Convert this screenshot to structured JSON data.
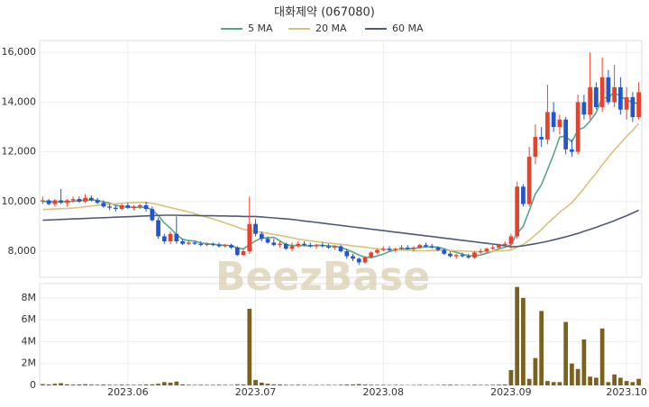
{
  "chart_data": [
    {
      "type": "candlestick",
      "title": "대화제약 (067080)",
      "watermark": "BeezBase",
      "up_color": "#e8412c",
      "down_color": "#2456c9",
      "ylim": [
        6950,
        16480
      ],
      "yticks": [
        {
          "value": 8000,
          "label": "8,000"
        },
        {
          "value": 10000,
          "label": "10,000"
        },
        {
          "value": 12000,
          "label": "12,000"
        },
        {
          "value": 14000,
          "label": "14,000"
        },
        {
          "value": 16000,
          "label": "16,000"
        }
      ],
      "grid": true,
      "open": [
        10000,
        10050,
        9900,
        10050,
        9950,
        10050,
        10100,
        10000,
        10150,
        10050,
        9950,
        9800,
        9750,
        9700,
        9850,
        9750,
        9800,
        9850,
        9700,
        9250,
        8600,
        8400,
        8700,
        8400,
        8300,
        8350,
        8300,
        8250,
        8300,
        8250,
        8200,
        8250,
        8150,
        7850,
        8000,
        9100,
        8700,
        8500,
        8350,
        8250,
        8300,
        8100,
        8200,
        8300,
        8250,
        8200,
        8250,
        8200,
        8150,
        8200,
        8000,
        7800,
        7700,
        7550,
        7750,
        7950,
        8050,
        8100,
        8050,
        8100,
        8150,
        8100,
        8150,
        8250,
        8200,
        8150,
        8050,
        7900,
        7800,
        7850,
        7800,
        7750,
        7950,
        8000,
        8100,
        8150,
        8250,
        8300,
        8600,
        10600,
        9900,
        11800,
        12600,
        12500,
        13600,
        13000,
        13300,
        12100,
        12000,
        14000,
        13500,
        14600,
        13800,
        15000,
        14000,
        14600,
        13700,
        14200,
        13400
      ],
      "high": [
        10200,
        10100,
        10100,
        10500,
        10100,
        10200,
        10200,
        10300,
        10250,
        10150,
        10050,
        9900,
        9850,
        9900,
        9950,
        9850,
        9900,
        10000,
        9800,
        9350,
        8700,
        8800,
        9400,
        8500,
        8450,
        8400,
        8400,
        8350,
        8350,
        8350,
        8300,
        8300,
        8200,
        8100,
        10200,
        9300,
        8800,
        8600,
        8500,
        8400,
        8350,
        8350,
        8400,
        8400,
        8350,
        8300,
        8350,
        8300,
        8250,
        8250,
        8100,
        7900,
        7750,
        7800,
        8000,
        8100,
        8200,
        8200,
        8150,
        8250,
        8250,
        8200,
        8300,
        8350,
        8300,
        8200,
        8100,
        8000,
        7900,
        7950,
        7900,
        8000,
        8100,
        8150,
        8250,
        8300,
        8400,
        8700,
        10800,
        10700,
        12200,
        13100,
        13000,
        14700,
        14000,
        13500,
        13400,
        12500,
        14300,
        14300,
        16000,
        14800,
        15800,
        15300,
        15500,
        15000,
        14600,
        14400,
        14800
      ],
      "low": [
        9900,
        9850,
        9800,
        9900,
        9800,
        9950,
        9950,
        9950,
        10000,
        9900,
        9750,
        9650,
        9600,
        9650,
        9700,
        9650,
        9700,
        9600,
        9200,
        8500,
        8300,
        8300,
        8300,
        8250,
        8250,
        8250,
        8200,
        8200,
        8200,
        8150,
        8150,
        8100,
        7800,
        7800,
        7900,
        8600,
        8400,
        8300,
        8200,
        8150,
        8050,
        8000,
        8150,
        8200,
        8150,
        8100,
        8150,
        8100,
        8050,
        7950,
        7700,
        7600,
        7450,
        7500,
        7700,
        7900,
        8000,
        8000,
        7950,
        8050,
        8050,
        8000,
        8100,
        8150,
        8100,
        8000,
        7850,
        7750,
        7700,
        7750,
        7700,
        7700,
        7900,
        7950,
        8050,
        8100,
        8200,
        8100,
        8500,
        9800,
        9800,
        11500,
        12200,
        12300,
        12800,
        12700,
        11900,
        11800,
        11900,
        13300,
        13300,
        13700,
        13600,
        13900,
        13800,
        13500,
        13300,
        13200,
        13300
      ],
      "close": [
        10050,
        9900,
        10050,
        9950,
        10050,
        10100,
        10000,
        10150,
        10050,
        9950,
        9800,
        9750,
        9700,
        9850,
        9750,
        9800,
        9850,
        9700,
        9250,
        8600,
        8400,
        8700,
        8400,
        8300,
        8350,
        8300,
        8250,
        8300,
        8250,
        8200,
        8250,
        8150,
        7850,
        8000,
        9100,
        8700,
        8500,
        8350,
        8250,
        8300,
        8100,
        8200,
        8300,
        8250,
        8200,
        8250,
        8200,
        8150,
        8200,
        8000,
        7800,
        7700,
        7550,
        7750,
        7950,
        8050,
        8100,
        8050,
        8100,
        8150,
        8100,
        8150,
        8250,
        8200,
        8150,
        8050,
        7900,
        7800,
        7850,
        7800,
        7750,
        7950,
        8000,
        8100,
        8150,
        8250,
        8300,
        8600,
        10600,
        9900,
        11800,
        12600,
        12500,
        13600,
        13000,
        13300,
        12100,
        12000,
        14000,
        13500,
        14600,
        13800,
        15000,
        14000,
        14600,
        13700,
        14200,
        13400,
        14400
      ],
      "series": [
        {
          "name": "5 MA",
          "color": "#5aa58a",
          "values": [
            10000,
            10000,
            9980,
            10000,
            9990,
            10010,
            10030,
            10060,
            10070,
            10050,
            9990,
            9940,
            9850,
            9810,
            9770,
            9770,
            9770,
            9770,
            9670,
            9440,
            9140,
            8930,
            8670,
            8480,
            8430,
            8410,
            8330,
            8300,
            8280,
            8260,
            8240,
            8230,
            8140,
            8090,
            8270,
            8420,
            8530,
            8540,
            8560,
            8420,
            8260,
            8230,
            8230,
            8230,
            8210,
            8240,
            8240,
            8210,
            8200,
            8160,
            8070,
            7970,
            7850,
            7760,
            7750,
            7810,
            7880,
            7990,
            8050,
            8090,
            8100,
            8110,
            8150,
            8180,
            8180,
            8160,
            8100,
            8020,
            7960,
            7880,
            7820,
            7820,
            7850,
            7920,
            8000,
            8090,
            8160,
            8260,
            8720,
            9000,
            9640,
            10300,
            10680,
            11280,
            11900,
            12600,
            12620,
            12400,
            12880,
            12980,
            13240,
            13580,
            14180,
            14180,
            14400,
            14220,
            14100,
            13980,
            13940
          ]
        },
        {
          "name": "20 MA",
          "color": "#d9c27a",
          "values": [
            9680,
            9690,
            9700,
            9710,
            9720,
            9740,
            9760,
            9790,
            9820,
            9850,
            9870,
            9890,
            9910,
            9930,
            9950,
            9960,
            9970,
            9960,
            9930,
            9880,
            9820,
            9760,
            9700,
            9640,
            9580,
            9510,
            9440,
            9370,
            9300,
            9220,
            9140,
            9060,
            8970,
            8880,
            8840,
            8800,
            8760,
            8720,
            8680,
            8640,
            8590,
            8540,
            8490,
            8450,
            8420,
            8390,
            8360,
            8330,
            8300,
            8280,
            8250,
            8220,
            8190,
            8160,
            8130,
            8100,
            8080,
            8070,
            8060,
            8050,
            8040,
            8030,
            8020,
            8020,
            8030,
            8040,
            8040,
            8030,
            8020,
            8010,
            8000,
            7990,
            7990,
            7990,
            8000,
            8010,
            8020,
            8050,
            8170,
            8270,
            8450,
            8660,
            8870,
            9120,
            9340,
            9570,
            9760,
            9950,
            10240,
            10530,
            10850,
            11140,
            11480,
            11780,
            12080,
            12350,
            12620,
            12860,
            13150
          ]
        },
        {
          "name": "60 MA",
          "color": "#4f5a7a",
          "values": [
            9250,
            9260,
            9270,
            9280,
            9290,
            9300,
            9310,
            9320,
            9330,
            9340,
            9350,
            9360,
            9370,
            9380,
            9390,
            9400,
            9410,
            9420,
            9430,
            9440,
            9450,
            9450,
            9450,
            9440,
            9440,
            9440,
            9430,
            9430,
            9430,
            9420,
            9420,
            9410,
            9410,
            9400,
            9400,
            9400,
            9380,
            9360,
            9340,
            9320,
            9300,
            9280,
            9250,
            9220,
            9190,
            9160,
            9130,
            9100,
            9070,
            9040,
            9010,
            8980,
            8950,
            8920,
            8890,
            8860,
            8830,
            8800,
            8770,
            8740,
            8710,
            8680,
            8650,
            8620,
            8590,
            8560,
            8530,
            8500,
            8470,
            8440,
            8410,
            8380,
            8350,
            8320,
            8290,
            8260,
            8220,
            8180,
            8190,
            8220,
            8260,
            8300,
            8350,
            8400,
            8460,
            8520,
            8580,
            8650,
            8720,
            8800,
            8880,
            8960,
            9050,
            9140,
            9230,
            9330,
            9430,
            9540,
            9650
          ]
        }
      ]
    },
    {
      "type": "bar",
      "color": "#7a6120",
      "ylim": [
        0,
        9300000
      ],
      "yticks": [
        {
          "value": 0,
          "label": "0"
        },
        {
          "value": 2000000,
          "label": "2M"
        },
        {
          "value": 4000000,
          "label": "4M"
        },
        {
          "value": 6000000,
          "label": "6M"
        },
        {
          "value": 8000000,
          "label": "8M"
        }
      ],
      "grid": true,
      "categories": [
        null,
        null,
        null,
        null,
        null,
        null,
        null,
        null,
        null,
        null,
        null,
        null,
        null,
        null,
        "2023.06",
        null,
        null,
        null,
        null,
        null,
        null,
        null,
        null,
        null,
        null,
        null,
        null,
        null,
        null,
        null,
        null,
        null,
        null,
        null,
        null,
        "2023.07",
        null,
        null,
        null,
        null,
        null,
        null,
        null,
        null,
        null,
        null,
        null,
        null,
        null,
        null,
        null,
        null,
        null,
        null,
        null,
        null,
        "2023.08",
        null,
        null,
        null,
        null,
        null,
        null,
        null,
        null,
        null,
        null,
        null,
        null,
        null,
        null,
        null,
        null,
        null,
        null,
        null,
        null,
        "2023.09",
        null,
        null,
        null,
        null,
        null,
        null,
        null,
        null,
        null,
        null,
        null,
        null,
        null,
        null,
        null,
        null,
        null,
        null,
        "2023.10",
        null,
        null
      ],
      "values": [
        120000,
        90000,
        150000,
        200000,
        100000,
        80000,
        90000,
        110000,
        70000,
        60000,
        80000,
        60000,
        50000,
        70000,
        60000,
        50000,
        60000,
        80000,
        100000,
        150000,
        300000,
        250000,
        350000,
        100000,
        60000,
        50000,
        60000,
        50000,
        50000,
        60000,
        50000,
        40000,
        100000,
        80000,
        7000000,
        500000,
        250000,
        150000,
        100000,
        80000,
        60000,
        50000,
        60000,
        50000,
        40000,
        50000,
        40000,
        50000,
        40000,
        60000,
        80000,
        90000,
        120000,
        80000,
        60000,
        50000,
        50000,
        40000,
        50000,
        40000,
        30000,
        40000,
        50000,
        40000,
        30000,
        40000,
        60000,
        70000,
        50000,
        40000,
        40000,
        60000,
        50000,
        50000,
        60000,
        70000,
        90000,
        1400000,
        9000000,
        8000000,
        600000,
        2500000,
        6800000,
        400000,
        300000,
        300000,
        5800000,
        2000000,
        1500000,
        4200000,
        800000,
        700000,
        5200000,
        300000,
        1000000,
        700000,
        400000,
        300000,
        600000
      ]
    }
  ]
}
